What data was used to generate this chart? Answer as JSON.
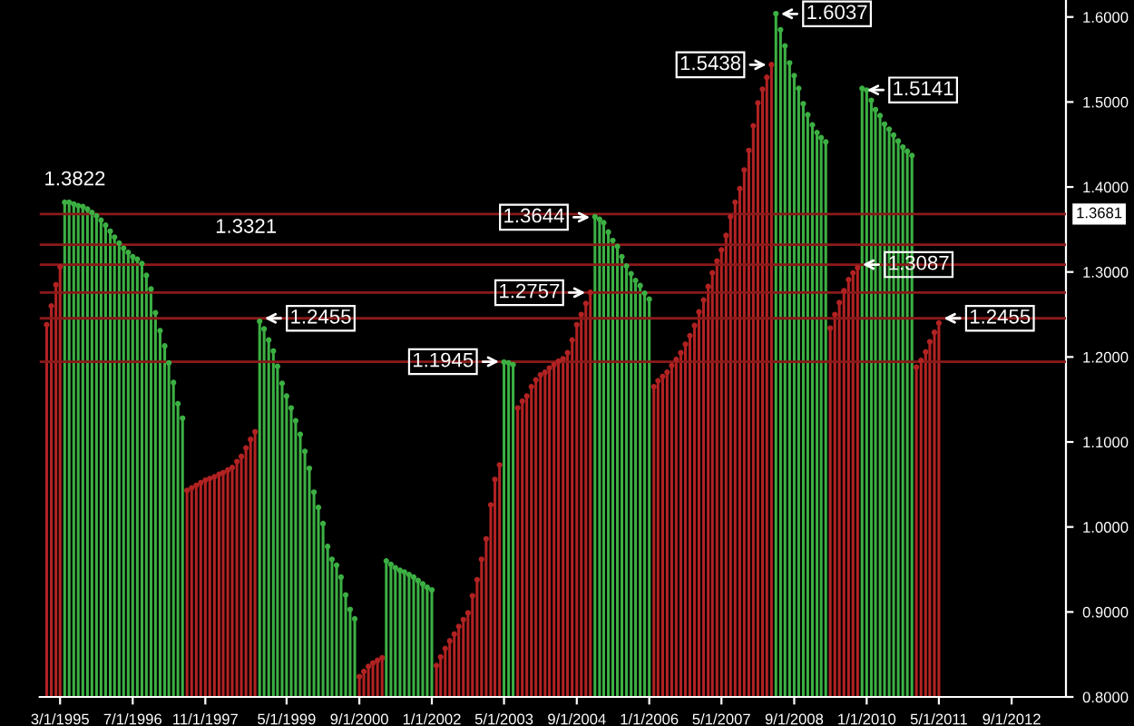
{
  "chart_data": {
    "type": "lollipop",
    "marker": "circle",
    "x": [
      "1994-12",
      "1995-01",
      "1995-02",
      "1995-03",
      "1995-04",
      "1995-05",
      "1995-06",
      "1995-07",
      "1995-08",
      "1995-09",
      "1995-10",
      "1995-11",
      "1995-12",
      "1996-01",
      "1996-02",
      "1996-03",
      "1996-04",
      "1996-05",
      "1996-06",
      "1996-07",
      "1996-08",
      "1996-09",
      "1996-10",
      "1996-11",
      "1996-12",
      "1997-01",
      "1997-02",
      "1997-03",
      "1997-04",
      "1997-05",
      "1997-06",
      "1997-07",
      "1997-08",
      "1997-09",
      "1997-10",
      "1997-11",
      "1997-12",
      "1998-01",
      "1998-02",
      "1998-03",
      "1998-04",
      "1998-05",
      "1998-06",
      "1998-07",
      "1998-08",
      "1998-09",
      "1998-10",
      "1998-11",
      "1998-12",
      "1999-01",
      "1999-02",
      "1999-03",
      "1999-04",
      "1999-05",
      "1999-06",
      "1999-07",
      "1999-08",
      "1999-09",
      "1999-10",
      "1999-11",
      "1999-12",
      "2000-01",
      "2000-02",
      "2000-03",
      "2000-04",
      "2000-05",
      "2000-06",
      "2000-07",
      "2000-08",
      "2000-09",
      "2000-10",
      "2000-11",
      "2000-12",
      "2001-01",
      "2001-02",
      "2001-03",
      "2001-04",
      "2001-05",
      "2001-06",
      "2001-07",
      "2001-08",
      "2001-09",
      "2001-10",
      "2001-11",
      "2001-12",
      "2002-01",
      "2002-02",
      "2002-03",
      "2002-04",
      "2002-05",
      "2002-06",
      "2002-07",
      "2002-08",
      "2002-09",
      "2002-10",
      "2002-11",
      "2002-12",
      "2003-01",
      "2003-02",
      "2003-03",
      "2003-04",
      "2003-05",
      "2003-06",
      "2003-07",
      "2003-08",
      "2003-09",
      "2003-10",
      "2003-11",
      "2003-12",
      "2004-01",
      "2004-02",
      "2004-03",
      "2004-04",
      "2004-05",
      "2004-06",
      "2004-07",
      "2004-08",
      "2004-09",
      "2004-10",
      "2004-11",
      "2004-12",
      "2005-01",
      "2005-02",
      "2005-03",
      "2005-04",
      "2005-05",
      "2005-06",
      "2005-07",
      "2005-08",
      "2005-09",
      "2005-10",
      "2005-11",
      "2005-12",
      "2006-01",
      "2006-02",
      "2006-03",
      "2006-04",
      "2006-05",
      "2006-06",
      "2006-07",
      "2006-08",
      "2006-09",
      "2006-10",
      "2006-11",
      "2006-12",
      "2007-01",
      "2007-02",
      "2007-03",
      "2007-04",
      "2007-05",
      "2007-06",
      "2007-07",
      "2007-08",
      "2007-09",
      "2007-10",
      "2007-11",
      "2007-12",
      "2008-01",
      "2008-02",
      "2008-03",
      "2008-04",
      "2008-05",
      "2008-06",
      "2008-07",
      "2008-08",
      "2008-09",
      "2008-10",
      "2008-11",
      "2008-12",
      "2009-01",
      "2009-02",
      "2009-03",
      "2009-04",
      "2009-05",
      "2009-06",
      "2009-07",
      "2009-08",
      "2009-09",
      "2009-10",
      "2009-11",
      "2009-12",
      "2010-01",
      "2010-02",
      "2010-03",
      "2010-04",
      "2010-05",
      "2010-06",
      "2010-07",
      "2010-08",
      "2010-09",
      "2010-10",
      "2010-11",
      "2010-12",
      "2011-01",
      "2011-02",
      "2011-03",
      "2011-04",
      "2011-05"
    ],
    "series": [
      {
        "color": "#3cb043",
        "values": [
          null,
          null,
          null,
          null,
          1.382,
          1.382,
          1.38,
          1.378,
          1.377,
          1.374,
          1.37,
          1.366,
          1.361,
          1.355,
          1.348,
          1.341,
          1.334,
          1.328,
          1.323,
          1.318,
          1.315,
          1.31,
          1.296,
          1.28,
          1.252,
          1.231,
          1.213,
          1.193,
          1.17,
          1.145,
          1.128,
          null,
          null,
          null,
          null,
          null,
          null,
          null,
          null,
          null,
          null,
          null,
          null,
          null,
          null,
          null,
          null,
          1.242,
          1.233,
          1.22,
          1.207,
          1.189,
          1.169,
          1.154,
          1.14,
          1.125,
          1.109,
          1.089,
          1.069,
          1.041,
          1.023,
          1.004,
          0.977,
          0.962,
          0.955,
          0.941,
          0.92,
          0.903,
          0.892,
          null,
          null,
          null,
          null,
          null,
          null,
          0.96,
          0.956,
          0.952,
          0.949,
          0.947,
          0.944,
          0.941,
          0.937,
          0.933,
          0.929,
          0.926,
          null,
          null,
          null,
          null,
          null,
          null,
          null,
          null,
          null,
          null,
          null,
          null,
          null,
          null,
          null,
          1.194,
          1.193,
          1.191,
          null,
          null,
          null,
          null,
          null,
          null,
          null,
          null,
          null,
          null,
          null,
          null,
          null,
          null,
          null,
          null,
          null,
          1.365,
          1.362,
          1.358,
          1.347,
          1.337,
          1.33,
          1.318,
          1.307,
          1.298,
          1.29,
          1.284,
          1.275,
          1.268,
          null,
          null,
          null,
          null,
          null,
          null,
          null,
          null,
          null,
          null,
          null,
          null,
          null,
          null,
          null,
          null,
          null,
          null,
          null,
          null,
          null,
          null,
          null,
          null,
          null,
          null,
          null,
          1.604,
          1.585,
          1.566,
          1.546,
          1.531,
          1.516,
          1.498,
          1.485,
          1.473,
          1.464,
          1.458,
          1.453,
          null,
          null,
          null,
          null,
          null,
          null,
          null,
          1.516,
          1.514,
          1.502,
          1.491,
          1.484,
          1.474,
          1.468,
          1.461,
          1.454,
          1.447,
          1.442,
          1.437,
          null,
          null,
          null,
          null,
          null,
          null
        ]
      },
      {
        "color": "#b22222",
        "values": [
          1.238,
          1.26,
          1.285,
          1.306,
          null,
          null,
          null,
          null,
          null,
          null,
          null,
          null,
          null,
          null,
          null,
          null,
          null,
          null,
          null,
          null,
          null,
          null,
          null,
          null,
          null,
          null,
          null,
          null,
          null,
          null,
          null,
          1.043,
          1.046,
          1.049,
          1.052,
          1.055,
          1.057,
          1.059,
          1.062,
          1.064,
          1.067,
          1.07,
          1.077,
          1.083,
          1.093,
          1.103,
          1.112,
          null,
          null,
          null,
          null,
          null,
          null,
          null,
          null,
          null,
          null,
          null,
          null,
          null,
          null,
          null,
          null,
          null,
          null,
          null,
          null,
          null,
          null,
          0.824,
          0.83,
          0.836,
          0.84,
          0.843,
          0.846,
          null,
          null,
          null,
          null,
          null,
          null,
          null,
          null,
          null,
          null,
          null,
          0.837,
          0.847,
          0.857,
          0.866,
          0.874,
          0.883,
          0.891,
          0.899,
          0.919,
          0.938,
          0.962,
          0.986,
          1.026,
          1.056,
          1.073,
          null,
          null,
          null,
          1.14,
          1.148,
          1.154,
          1.165,
          1.173,
          1.179,
          1.182,
          1.187,
          1.191,
          1.195,
          1.198,
          1.205,
          1.22,
          1.238,
          1.25,
          1.263,
          1.276,
          null,
          null,
          null,
          null,
          null,
          null,
          null,
          null,
          null,
          null,
          null,
          null,
          null,
          1.165,
          1.172,
          1.177,
          1.182,
          1.19,
          1.197,
          1.205,
          1.215,
          1.225,
          1.237,
          1.253,
          1.267,
          1.283,
          1.299,
          1.313,
          1.326,
          1.343,
          1.365,
          1.382,
          1.398,
          1.42,
          1.443,
          1.472,
          1.499,
          1.515,
          1.529,
          1.544,
          null,
          null,
          null,
          null,
          null,
          null,
          null,
          null,
          null,
          null,
          null,
          null,
          1.234,
          1.25,
          1.264,
          1.278,
          1.291,
          1.299,
          1.305,
          null,
          null,
          null,
          null,
          null,
          null,
          null,
          null,
          null,
          null,
          null,
          null,
          1.188,
          1.196,
          1.206,
          1.218,
          1.229,
          1.24
        ]
      }
    ],
    "xlim": [
      "1994-10-15",
      "2013-09-01"
    ],
    "xticks": [
      {
        "value": "1995-03-01",
        "label": "3/1/1995"
      },
      {
        "value": "1996-07-01",
        "label": "7/1/1996"
      },
      {
        "value": "1997-11-01",
        "label": "11/1/1997"
      },
      {
        "value": "1999-05-01",
        "label": "5/1/1999"
      },
      {
        "value": "2000-09-01",
        "label": "9/1/2000"
      },
      {
        "value": "2002-01-01",
        "label": "1/1/2002"
      },
      {
        "value": "2003-05-01",
        "label": "5/1/2003"
      },
      {
        "value": "2004-09-01",
        "label": "9/1/2004"
      },
      {
        "value": "2006-01-01",
        "label": "1/1/2006"
      },
      {
        "value": "2007-05-01",
        "label": "5/1/2007"
      },
      {
        "value": "2008-09-01",
        "label": "9/1/2008"
      },
      {
        "value": "2010-01-01",
        "label": "1/1/2010"
      },
      {
        "value": "2011-05-01",
        "label": "5/1/2011"
      },
      {
        "value": "2012-09-01",
        "label": "9/1/2012"
      }
    ],
    "ylim": [
      0.8,
      1.62
    ],
    "yticks": [
      {
        "value": 0.8,
        "label": "0.8000"
      },
      {
        "value": 0.9,
        "label": "0.9000"
      },
      {
        "value": 1.0,
        "label": "1.0000"
      },
      {
        "value": 1.1,
        "label": "1.1000"
      },
      {
        "value": 1.2,
        "label": "1.2000"
      },
      {
        "value": 1.3,
        "label": "1.3000"
      },
      {
        "value": 1.4,
        "label": "1.4000"
      },
      {
        "value": 1.5,
        "label": "1.5000"
      },
      {
        "value": 1.6,
        "label": "1.6000"
      }
    ],
    "ref_lines": [
      {
        "axis": "y",
        "value": 1.3681,
        "label": "1.3681",
        "color": "#8b1a1a"
      },
      {
        "axis": "y",
        "value": 1.3321,
        "color": "#8b1a1a"
      },
      {
        "axis": "y",
        "value": 1.3087,
        "color": "#8b1a1a"
      },
      {
        "axis": "y",
        "value": 1.2757,
        "color": "#8b1a1a"
      },
      {
        "axis": "y",
        "value": 1.2455,
        "color": "#8b1a1a"
      },
      {
        "axis": "y",
        "value": 1.1945,
        "color": "#8b1a1a"
      }
    ],
    "annotations": [
      {
        "text": "1.3822",
        "x": "1995-04",
        "y": 1.3822
      },
      {
        "text": "1.3321",
        "x": "1998-08",
        "y": 1.3321
      },
      {
        "text": "1.2455",
        "x": "1998-11",
        "y": 1.2455
      },
      {
        "text": "1.1945",
        "x": "2003-05",
        "y": 1.1945
      },
      {
        "text": "1.2757",
        "x": "2004-12",
        "y": 1.2757
      },
      {
        "text": "1.3644",
        "x": "2005-01",
        "y": 1.3644
      },
      {
        "text": "1.5438",
        "x": "2008-04",
        "y": 1.5438
      },
      {
        "text": "1.6037",
        "x": "2008-05",
        "y": 1.6037
      },
      {
        "text": "1.3087",
        "x": "2009-11",
        "y": 1.3087
      },
      {
        "text": "1.5141",
        "x": "2009-12",
        "y": 1.5141
      },
      {
        "text": "1.2455",
        "x": "2011-05",
        "y": 1.2455
      }
    ]
  }
}
